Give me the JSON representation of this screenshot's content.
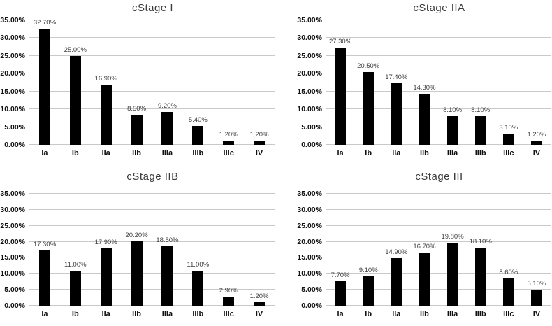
{
  "colors": {
    "background": "#ffffff",
    "bar": "#000000",
    "gridline": "#c9c9c9",
    "title_text": "#3b3b3b",
    "tick_label_text": "#111111",
    "data_label_text": "#404040"
  },
  "chart_data": [
    {
      "type": "bar",
      "title": "cStage I",
      "categories": [
        "Ia",
        "Ib",
        "IIa",
        "IIb",
        "IIIa",
        "IIIb",
        "IIIc",
        "IV"
      ],
      "values": [
        32.7,
        25.0,
        16.9,
        8.5,
        9.2,
        5.4,
        1.2,
        1.2
      ],
      "value_labels": [
        "32.70%",
        "25.00%",
        "16.90%",
        "8.50%",
        "9.20%",
        "5.40%",
        "1.20%",
        "1.20%"
      ],
      "yticks": [
        "0.00%",
        "5.00%",
        "10.00%",
        "15.00%",
        "20.00%",
        "25.00%",
        "30.00%",
        "35.00%"
      ],
      "ylim": [
        0,
        35
      ],
      "ytick_step": 5,
      "xlabel": "",
      "ylabel": "",
      "grid": true,
      "legend_position": "none"
    },
    {
      "type": "bar",
      "title": "cStage IIA",
      "categories": [
        "Ia",
        "Ib",
        "IIa",
        "IIb",
        "IIIa",
        "IIIb",
        "IIIc",
        "IV"
      ],
      "values": [
        27.3,
        20.5,
        17.4,
        14.3,
        8.1,
        8.1,
        3.1,
        1.2
      ],
      "value_labels": [
        "27.30%",
        "20.50%",
        "17.40%",
        "14.30%",
        "8.10%",
        "8.10%",
        "3.10%",
        "1.20%"
      ],
      "yticks": [
        "0.00%",
        "5.00%",
        "10.00%",
        "15.00%",
        "20.00%",
        "25.00%",
        "30.00%",
        "35.00%"
      ],
      "ylim": [
        0,
        35
      ],
      "ytick_step": 5,
      "xlabel": "",
      "ylabel": "",
      "grid": true,
      "legend_position": "none"
    },
    {
      "type": "bar",
      "title": "cStage IIB",
      "categories": [
        "Ia",
        "Ib",
        "IIa",
        "IIb",
        "IIIa",
        "IIIb",
        "IIIc",
        "IV"
      ],
      "values": [
        17.3,
        11.0,
        17.9,
        20.2,
        18.5,
        11.0,
        2.9,
        1.2
      ],
      "value_labels": [
        "17.30%",
        "11.00%",
        "17.90%",
        "20.20%",
        "18.50%",
        "11.00%",
        "2.90%",
        "1.20%"
      ],
      "yticks": [
        "0.00%",
        "5.00%",
        "10.00%",
        "15.00%",
        "20.00%",
        "25.00%",
        "30.00%",
        "35.00%"
      ],
      "ylim": [
        0,
        35
      ],
      "ytick_step": 5,
      "xlabel": "",
      "ylabel": "",
      "grid": true,
      "legend_position": "none"
    },
    {
      "type": "bar",
      "title": "cStage III",
      "categories": [
        "Ia",
        "Ib",
        "IIa",
        "IIb",
        "IIIa",
        "IIIb",
        "IIIc",
        "IV"
      ],
      "values": [
        7.7,
        9.1,
        14.9,
        16.7,
        19.8,
        18.1,
        8.6,
        5.1
      ],
      "value_labels": [
        "7.70%",
        "9.10%",
        "14.90%",
        "16.70%",
        "19.80%",
        "18.10%",
        "8.60%",
        "5.10%"
      ],
      "yticks": [
        "0.00%",
        "5.00%",
        "10.00%",
        "15.00%",
        "20.00%",
        "25.00%",
        "30.00%",
        "35.00%"
      ],
      "ylim": [
        0,
        35
      ],
      "ytick_step": 5,
      "xlabel": "",
      "ylabel": "",
      "grid": true,
      "legend_position": "none"
    }
  ]
}
